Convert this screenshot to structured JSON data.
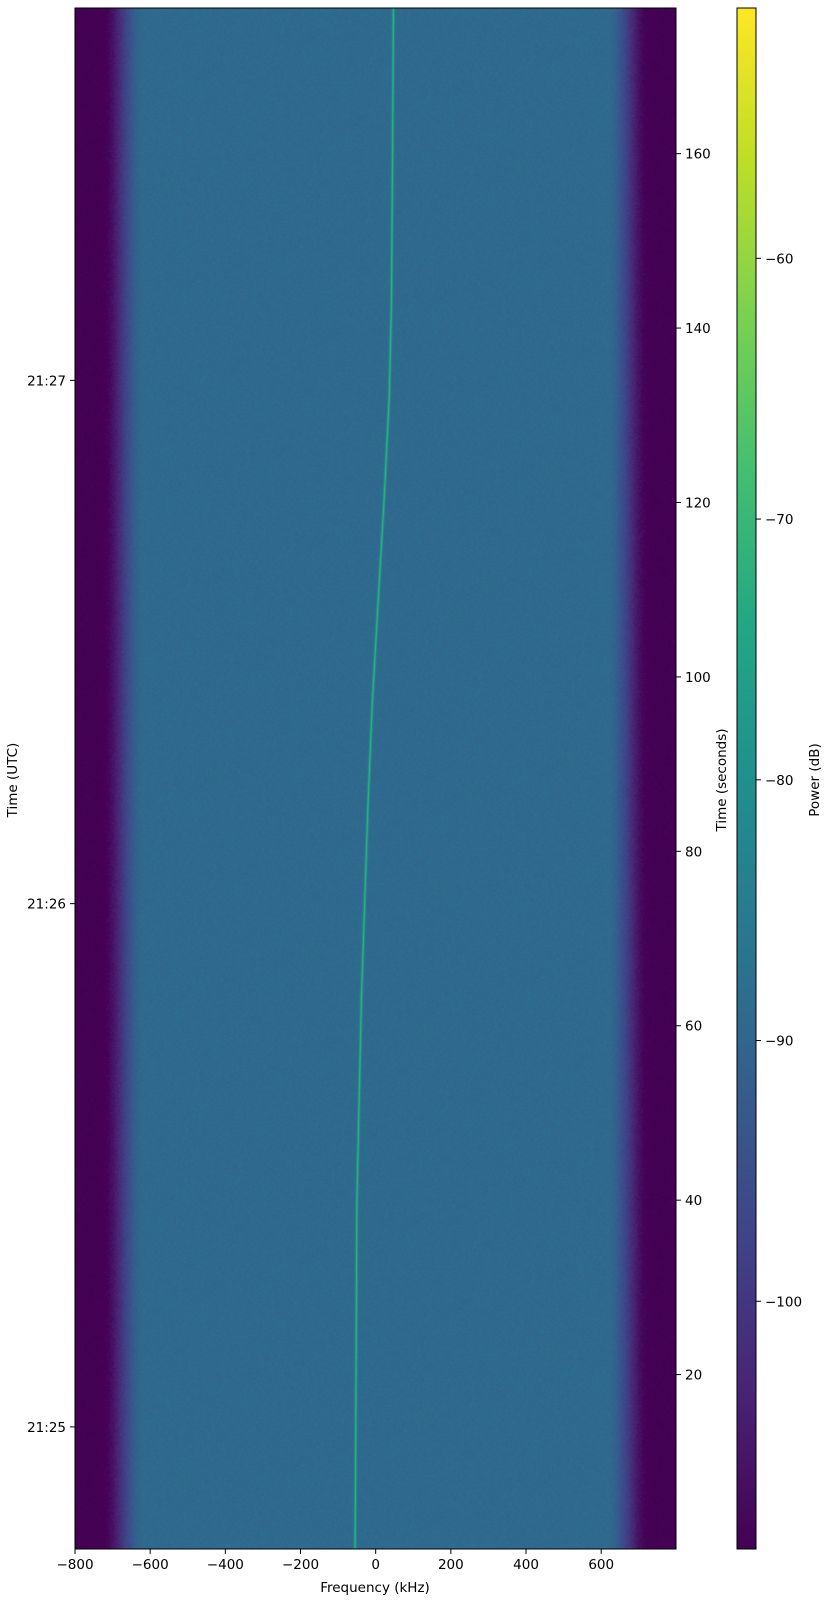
{
  "chart_data": {
    "type": "heatmap",
    "title": "",
    "xlabel": "Frequency (kHz)",
    "ylabel_left": "Time (UTC)",
    "ylabel_right": "Time (seconds)",
    "colorbar_label": "Power (dB)",
    "colormap": "viridis",
    "xlim": [
      -800,
      799
    ],
    "ylim_seconds": [
      0,
      176.7
    ],
    "clim_db": [
      -109.5,
      -50.4
    ],
    "x_ticks": [
      {
        "value": -800,
        "label": "−800"
      },
      {
        "value": -600,
        "label": "−600"
      },
      {
        "value": -400,
        "label": "−400"
      },
      {
        "value": -200,
        "label": "−200"
      },
      {
        "value": 0,
        "label": "0"
      },
      {
        "value": 200,
        "label": "200"
      },
      {
        "value": 400,
        "label": "400"
      },
      {
        "value": 600,
        "label": "600"
      }
    ],
    "right_y_ticks": [
      {
        "value": 20,
        "label": "20"
      },
      {
        "value": 40,
        "label": "40"
      },
      {
        "value": 60,
        "label": "60"
      },
      {
        "value": 80,
        "label": "80"
      },
      {
        "value": 100,
        "label": "100"
      },
      {
        "value": 120,
        "label": "120"
      },
      {
        "value": 140,
        "label": "140"
      },
      {
        "value": 160,
        "label": "160"
      }
    ],
    "left_y_ticks": [
      {
        "value": 14,
        "label": "21:25"
      },
      {
        "value": 74,
        "label": "21:26"
      },
      {
        "value": 134,
        "label": "21:27"
      }
    ],
    "colorbar_ticks": [
      {
        "value": -100,
        "label": "−100"
      },
      {
        "value": -90,
        "label": "−90"
      },
      {
        "value": -80,
        "label": "−80"
      },
      {
        "value": -70,
        "label": "−70"
      },
      {
        "value": -60,
        "label": "−60"
      }
    ],
    "noise_floor_db": -89,
    "band_edge_khz": [
      -730,
      730
    ],
    "out_of_band_db": -110,
    "signal": {
      "power_db": -70,
      "track": [
        {
          "t": 0,
          "f": -55
        },
        {
          "t": 5.5,
          "f": -54
        },
        {
          "t": 40,
          "f": -50
        },
        {
          "t": 63,
          "f": -38
        },
        {
          "t": 86,
          "f": -20
        },
        {
          "t": 97,
          "f": -9
        },
        {
          "t": 109,
          "f": 7
        },
        {
          "t": 120,
          "f": 22
        },
        {
          "t": 132,
          "f": 36
        },
        {
          "t": 143,
          "f": 42
        },
        {
          "t": 160,
          "f": 45
        },
        {
          "t": 176.7,
          "f": 47
        }
      ]
    }
  }
}
